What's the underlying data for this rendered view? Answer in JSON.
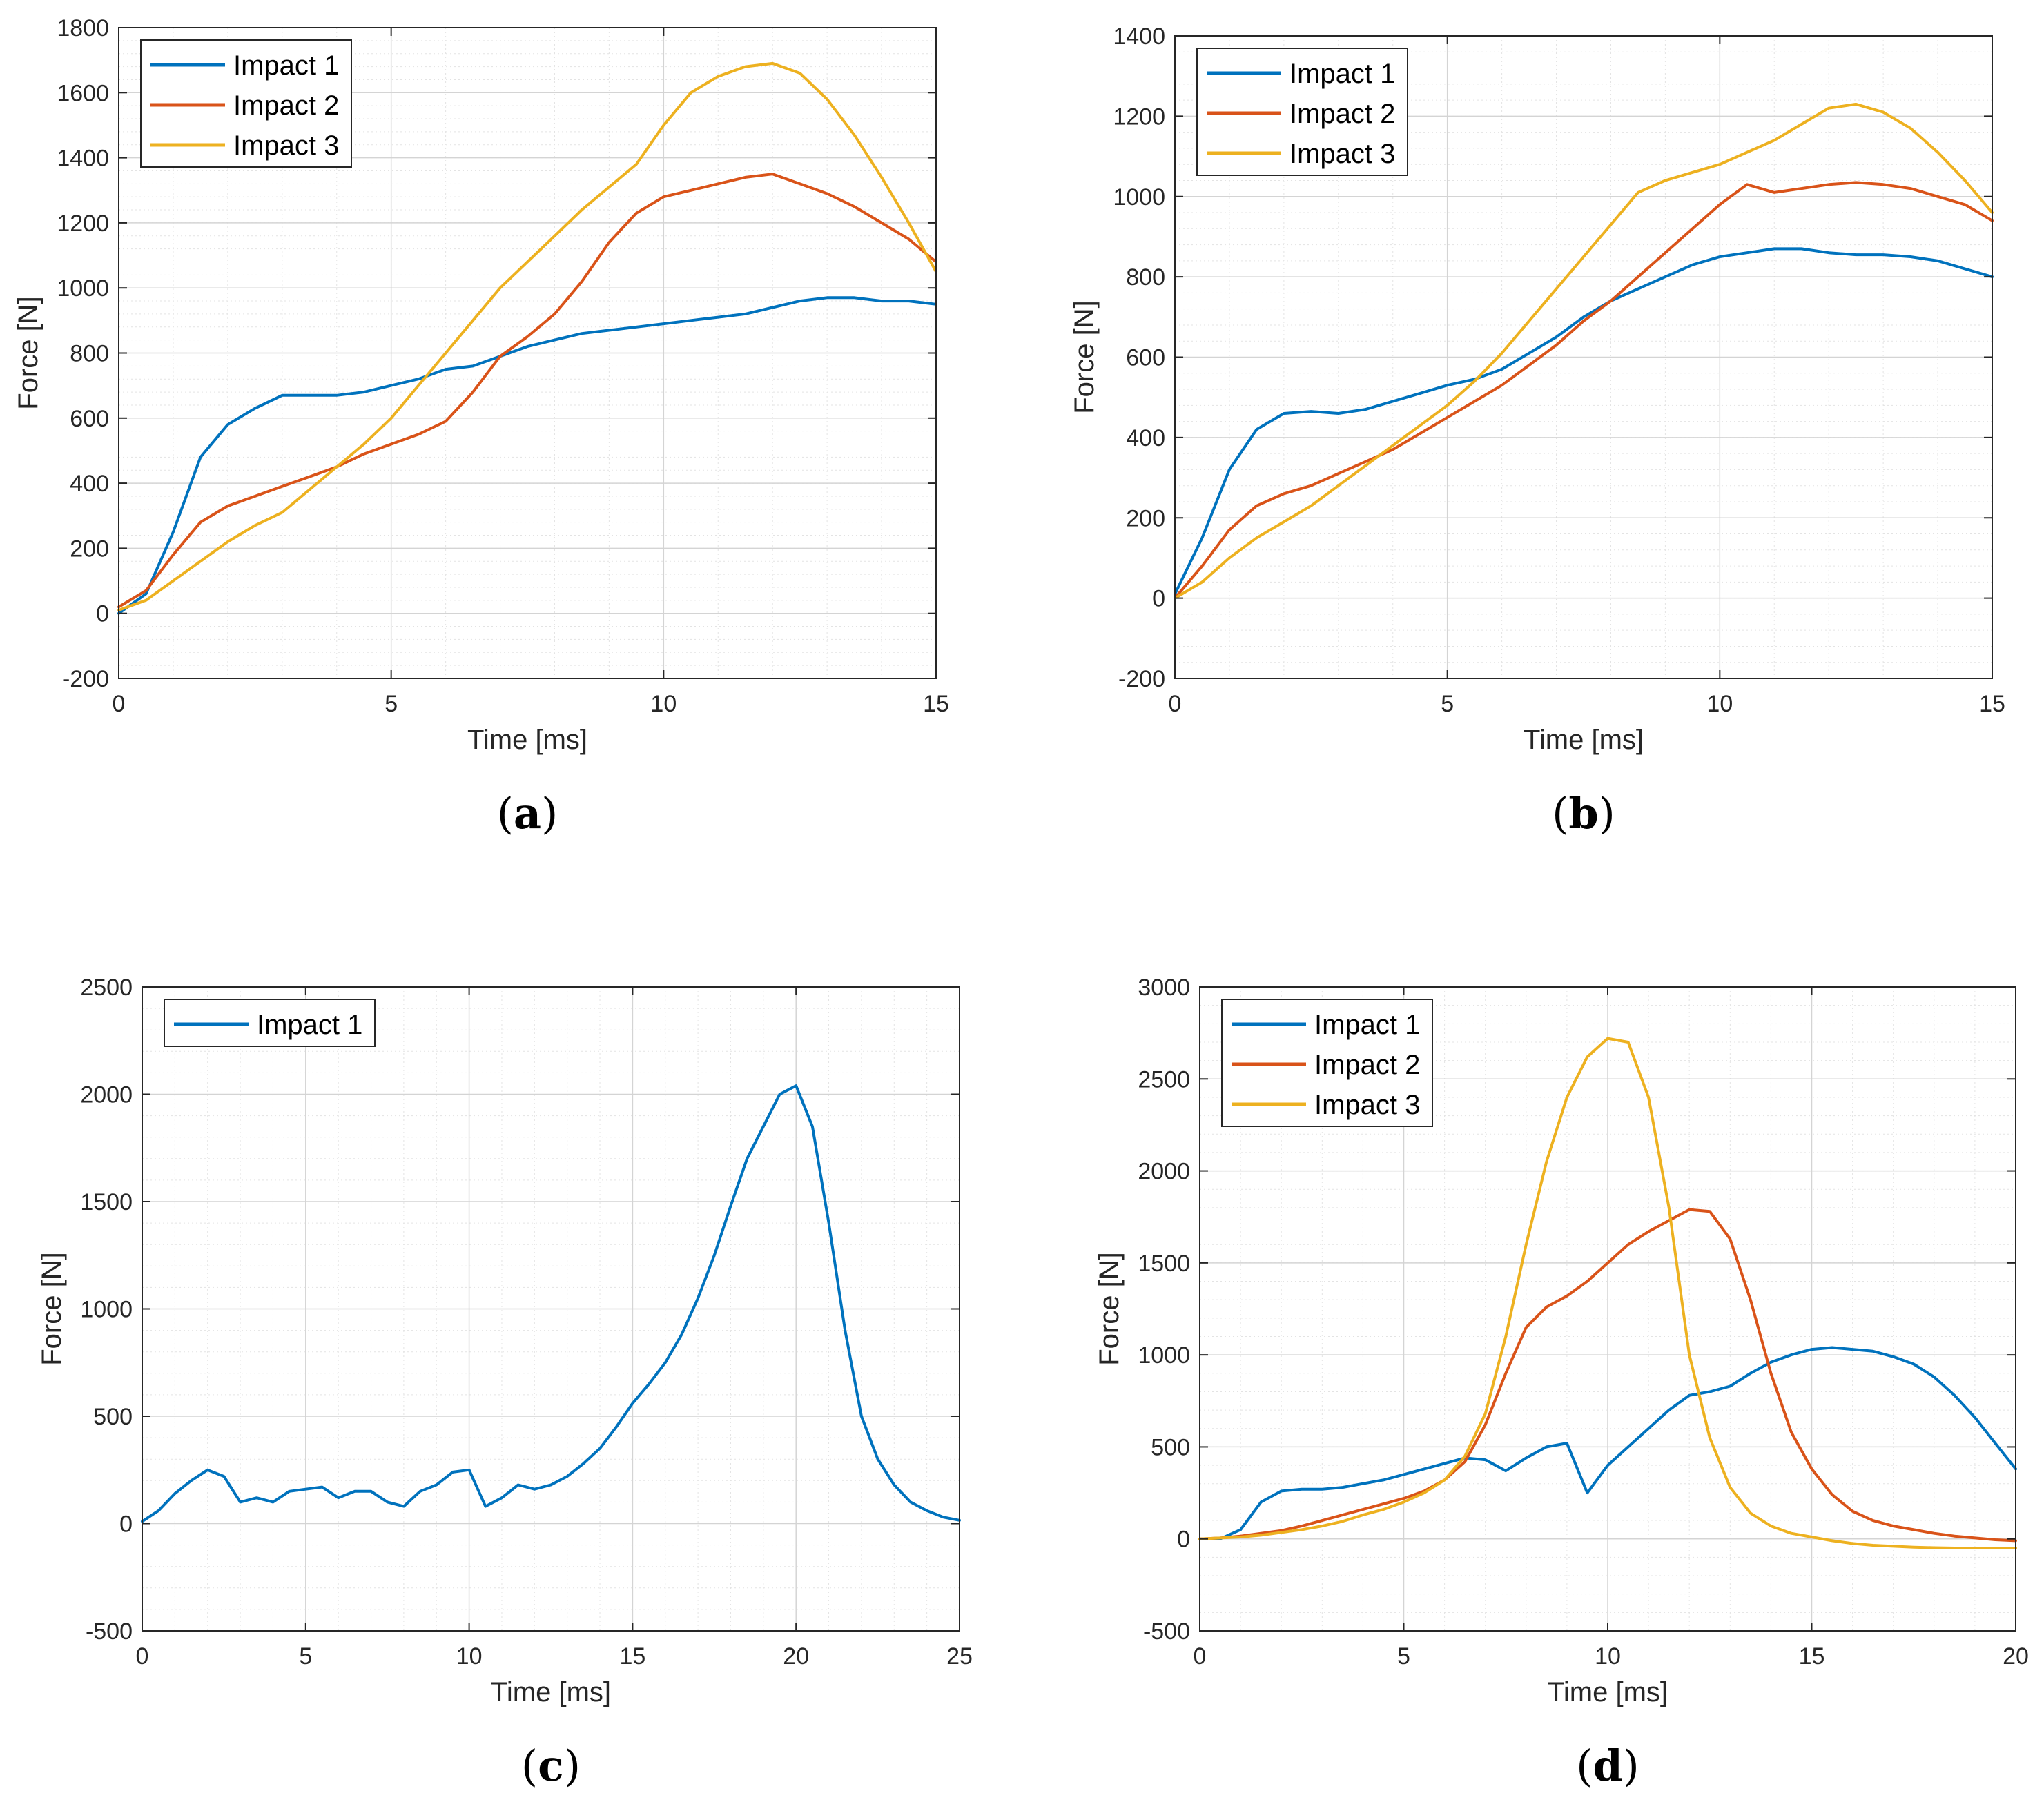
{
  "chart_data": [
    {
      "type": "line",
      "panel_label": "a",
      "xlabel": "Time [ms]",
      "ylabel": "Force [N]",
      "xlim": [
        0,
        15
      ],
      "ylim": [
        -200,
        1800
      ],
      "xticks": [
        0,
        5,
        10,
        15
      ],
      "yticks": [
        -200,
        0,
        200,
        400,
        600,
        800,
        1000,
        1200,
        1400,
        1600,
        1800
      ],
      "grid": true,
      "legend_position": "top-left",
      "series": [
        {
          "name": "Impact 1",
          "color": "#0072BD",
          "x": [
            0,
            0.5,
            1,
            1.5,
            2,
            2.5,
            3,
            3.5,
            4,
            4.5,
            5,
            5.5,
            6,
            6.5,
            7,
            7.5,
            8,
            8.5,
            9,
            9.5,
            10,
            10.5,
            11,
            11.5,
            12,
            12.5,
            13,
            13.5,
            14,
            14.5,
            15
          ],
          "y": [
            0,
            60,
            250,
            480,
            580,
            630,
            670,
            670,
            670,
            680,
            700,
            720,
            750,
            760,
            790,
            820,
            840,
            860,
            870,
            880,
            890,
            900,
            910,
            920,
            940,
            960,
            970,
            970,
            960,
            960,
            950
          ]
        },
        {
          "name": "Impact 2",
          "color": "#D95319",
          "x": [
            0,
            0.5,
            1,
            1.5,
            2,
            2.5,
            3,
            3.5,
            4,
            4.5,
            5,
            5.5,
            6,
            6.5,
            7,
            7.5,
            8,
            8.5,
            9,
            9.5,
            10,
            10.5,
            11,
            11.5,
            12,
            12.5,
            13,
            13.5,
            14,
            14.5,
            15
          ],
          "y": [
            20,
            70,
            180,
            280,
            330,
            360,
            390,
            420,
            450,
            490,
            520,
            550,
            590,
            680,
            790,
            850,
            920,
            1020,
            1140,
            1230,
            1280,
            1300,
            1320,
            1340,
            1350,
            1320,
            1290,
            1250,
            1200,
            1150,
            1080
          ]
        },
        {
          "name": "Impact 3",
          "color": "#EDB120",
          "x": [
            0,
            0.5,
            1,
            1.5,
            2,
            2.5,
            3,
            3.5,
            4,
            4.5,
            5,
            5.5,
            6,
            6.5,
            7,
            7.5,
            8,
            8.5,
            9,
            9.5,
            10,
            10.5,
            11,
            11.5,
            12,
            12.5,
            13,
            13.5,
            14,
            14.5,
            15
          ],
          "y": [
            10,
            40,
            100,
            160,
            220,
            270,
            310,
            380,
            450,
            520,
            600,
            700,
            800,
            900,
            1000,
            1080,
            1160,
            1240,
            1310,
            1380,
            1500,
            1600,
            1650,
            1680,
            1690,
            1660,
            1580,
            1470,
            1340,
            1200,
            1050
          ]
        }
      ]
    },
    {
      "type": "line",
      "panel_label": "b",
      "xlabel": "Time [ms]",
      "ylabel": "Force [N]",
      "xlim": [
        0,
        15
      ],
      "ylim": [
        -200,
        1400
      ],
      "xticks": [
        0,
        5,
        10,
        15
      ],
      "yticks": [
        -200,
        0,
        200,
        400,
        600,
        800,
        1000,
        1200,
        1400
      ],
      "grid": true,
      "legend_position": "top-left",
      "series": [
        {
          "name": "Impact 1",
          "color": "#0072BD",
          "x": [
            0,
            0.5,
            1,
            1.5,
            2,
            2.5,
            3,
            3.5,
            4,
            4.5,
            5,
            5.5,
            6,
            6.5,
            7,
            7.5,
            8,
            8.5,
            9,
            9.5,
            10,
            10.5,
            11,
            11.5,
            12,
            12.5,
            13,
            13.5,
            14,
            14.5,
            15
          ],
          "y": [
            10,
            150,
            320,
            420,
            460,
            465,
            460,
            470,
            490,
            510,
            530,
            545,
            570,
            610,
            650,
            700,
            740,
            770,
            800,
            830,
            850,
            860,
            870,
            870,
            860,
            855,
            855,
            850,
            840,
            820,
            800
          ]
        },
        {
          "name": "Impact 2",
          "color": "#D95319",
          "x": [
            0,
            0.5,
            1,
            1.5,
            2,
            2.5,
            3,
            3.5,
            4,
            4.5,
            5,
            5.5,
            6,
            6.5,
            7,
            7.5,
            8,
            8.5,
            9,
            9.5,
            10,
            10.5,
            11,
            11.5,
            12,
            12.5,
            13,
            13.5,
            14,
            14.5,
            15
          ],
          "y": [
            0,
            80,
            170,
            230,
            260,
            280,
            310,
            340,
            370,
            410,
            450,
            490,
            530,
            580,
            630,
            690,
            740,
            800,
            860,
            920,
            980,
            1030,
            1010,
            1020,
            1030,
            1035,
            1030,
            1020,
            1000,
            980,
            940
          ]
        },
        {
          "name": "Impact 3",
          "color": "#EDB120",
          "x": [
            0,
            0.5,
            1,
            1.5,
            2,
            2.5,
            3,
            3.5,
            4,
            4.5,
            5,
            5.5,
            6,
            6.5,
            7,
            7.5,
            8,
            8.5,
            9,
            9.5,
            10,
            10.5,
            11,
            11.5,
            12,
            12.5,
            13,
            13.5,
            14,
            14.5,
            15
          ],
          "y": [
            0,
            40,
            100,
            150,
            190,
            230,
            280,
            330,
            380,
            430,
            480,
            540,
            610,
            690,
            770,
            850,
            930,
            1010,
            1040,
            1060,
            1080,
            1110,
            1140,
            1180,
            1220,
            1230,
            1210,
            1170,
            1110,
            1040,
            960
          ]
        }
      ]
    },
    {
      "type": "line",
      "panel_label": "c",
      "xlabel": "Time [ms]",
      "ylabel": "Force [N]",
      "xlim": [
        0,
        25
      ],
      "ylim": [
        -500,
        2500
      ],
      "xticks": [
        0,
        5,
        10,
        15,
        20,
        25
      ],
      "yticks": [
        -500,
        0,
        500,
        1000,
        1500,
        2000,
        2500
      ],
      "grid": true,
      "legend_position": "top-left",
      "series": [
        {
          "name": "Impact 1",
          "color": "#0072BD",
          "x": [
            0,
            0.5,
            1,
            1.5,
            2,
            2.5,
            3,
            3.5,
            4,
            4.5,
            5,
            5.5,
            6,
            6.5,
            7,
            7.5,
            8,
            8.5,
            9,
            9.5,
            10,
            10.5,
            11,
            11.5,
            12,
            12.5,
            13,
            13.5,
            14,
            14.5,
            15,
            15.5,
            16,
            16.5,
            17,
            17.5,
            18,
            18.5,
            19,
            19.5,
            20,
            20.5,
            21,
            21.5,
            22,
            22.5,
            23,
            23.5,
            24,
            24.5,
            25
          ],
          "y": [
            10,
            60,
            140,
            200,
            250,
            220,
            100,
            120,
            100,
            150,
            160,
            170,
            120,
            150,
            150,
            100,
            80,
            150,
            180,
            240,
            250,
            80,
            120,
            180,
            160,
            180,
            220,
            280,
            350,
            450,
            560,
            650,
            750,
            880,
            1050,
            1250,
            1480,
            1700,
            1850,
            2000,
            2040,
            1850,
            1400,
            900,
            500,
            300,
            180,
            100,
            60,
            30,
            15
          ]
        }
      ]
    },
    {
      "type": "line",
      "panel_label": "d",
      "xlabel": "Time [ms]",
      "ylabel": "Force [N]",
      "xlim": [
        0,
        20
      ],
      "ylim": [
        -500,
        3000
      ],
      "xticks": [
        0,
        5,
        10,
        15,
        20
      ],
      "yticks": [
        -500,
        0,
        500,
        1000,
        1500,
        2000,
        2500,
        3000
      ],
      "grid": true,
      "legend_position": "top-left",
      "series": [
        {
          "name": "Impact 1",
          "color": "#0072BD",
          "x": [
            0,
            0.5,
            1,
            1.5,
            2,
            2.5,
            3,
            3.5,
            4,
            4.5,
            5,
            5.5,
            6,
            6.5,
            7,
            7.5,
            8,
            8.5,
            9,
            9.5,
            10,
            10.5,
            11,
            11.5,
            12,
            12.5,
            13,
            13.5,
            14,
            14.5,
            15,
            15.5,
            16,
            16.5,
            17,
            17.5,
            18,
            18.5,
            19,
            19.5,
            20
          ],
          "y": [
            0,
            0,
            50,
            200,
            260,
            270,
            270,
            280,
            300,
            320,
            350,
            380,
            410,
            440,
            430,
            370,
            440,
            500,
            520,
            250,
            400,
            500,
            600,
            700,
            780,
            800,
            830,
            900,
            960,
            1000,
            1030,
            1040,
            1030,
            1020,
            990,
            950,
            880,
            780,
            660,
            520,
            380
          ]
        },
        {
          "name": "Impact 2",
          "color": "#D95319",
          "x": [
            0,
            0.5,
            1,
            1.5,
            2,
            2.5,
            3,
            3.5,
            4,
            4.5,
            5,
            5.5,
            6,
            6.5,
            7,
            7.5,
            8,
            8.5,
            9,
            9.5,
            10,
            10.5,
            11,
            11.5,
            12,
            12.5,
            13,
            13.5,
            14,
            14.5,
            15,
            15.5,
            16,
            16.5,
            17,
            17.5,
            18,
            18.5,
            19,
            19.5,
            20
          ],
          "y": [
            0,
            5,
            15,
            30,
            45,
            70,
            100,
            130,
            160,
            190,
            220,
            260,
            320,
            420,
            620,
            900,
            1150,
            1260,
            1320,
            1400,
            1500,
            1600,
            1670,
            1730,
            1790,
            1780,
            1630,
            1300,
            900,
            580,
            380,
            240,
            150,
            100,
            70,
            50,
            30,
            15,
            5,
            -5,
            -10
          ]
        },
        {
          "name": "Impact 3",
          "color": "#EDB120",
          "x": [
            0,
            0.5,
            1,
            1.5,
            2,
            2.5,
            3,
            3.5,
            4,
            4.5,
            5,
            5.5,
            6,
            6.5,
            7,
            7.5,
            8,
            8.5,
            9,
            9.5,
            10,
            10.5,
            11,
            11.5,
            12,
            12.5,
            13,
            13.5,
            14,
            14.5,
            15,
            15.5,
            16,
            16.5,
            17,
            17.5,
            18,
            18.5,
            19,
            19.5,
            20
          ],
          "y": [
            0,
            5,
            10,
            20,
            35,
            50,
            70,
            95,
            130,
            160,
            200,
            250,
            320,
            450,
            680,
            1100,
            1600,
            2050,
            2400,
            2620,
            2720,
            2700,
            2400,
            1800,
            1000,
            550,
            280,
            140,
            70,
            30,
            10,
            -10,
            -25,
            -35,
            -40,
            -45,
            -48,
            -50,
            -50,
            -50,
            -50
          ]
        }
      ]
    }
  ]
}
